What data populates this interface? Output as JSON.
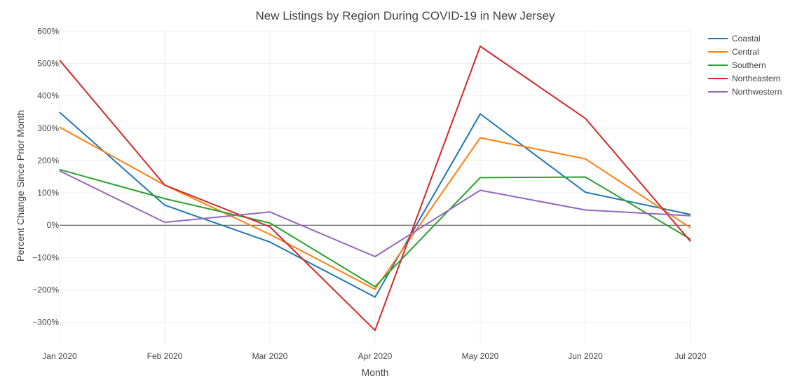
{
  "chart_data": {
    "type": "line",
    "title": "New Listings by Region During COVID-19 in New Jersey",
    "xlabel": "Month",
    "ylabel": "Percent Change Since Prior Month",
    "categories": [
      "Jan 2020",
      "Feb 2020",
      "Mar 2020",
      "Apr 2020",
      "May 2020",
      "Jun 2020",
      "Jul 2020"
    ],
    "yticks": [
      -300,
      -200,
      -100,
      0,
      100,
      200,
      300,
      400,
      500,
      600
    ],
    "ytick_labels": [
      "−300%",
      "−200%",
      "−100%",
      "0%",
      "100%",
      "200%",
      "300%",
      "400%",
      "500%",
      "600%"
    ],
    "ylim": [
      -370,
      605
    ],
    "grid": true,
    "legend_position": "top-right",
    "series": [
      {
        "name": "Coastal",
        "color": "#1f77b4",
        "values": [
          349,
          62,
          -52,
          -222,
          344,
          102,
          33
        ]
      },
      {
        "name": "Central",
        "color": "#ff7f0e",
        "values": [
          303,
          124,
          -28,
          -198,
          270,
          205,
          -8
        ]
      },
      {
        "name": "Southern",
        "color": "#2ca02c",
        "values": [
          172,
          82,
          7,
          -190,
          147,
          149,
          -43
        ]
      },
      {
        "name": "Northeastern",
        "color": "#d62728",
        "values": [
          510,
          124,
          -5,
          -325,
          553,
          330,
          -50
        ]
      },
      {
        "name": "Northwestern",
        "color": "#9467bd",
        "values": [
          168,
          9,
          41,
          -97,
          108,
          47,
          29
        ]
      }
    ]
  }
}
